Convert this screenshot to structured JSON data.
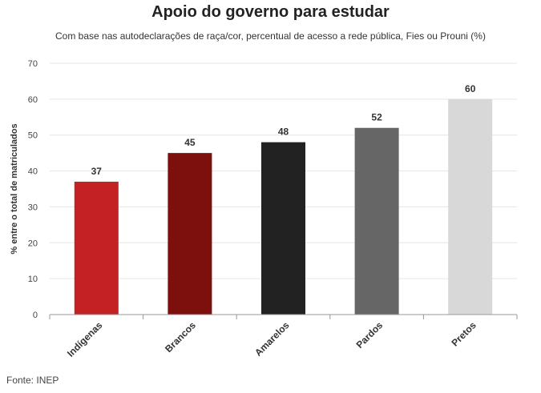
{
  "chart_data": {
    "type": "bar",
    "title": "Apoio do governo para estudar",
    "subtitle": "Com base nas autodeclarações de raça/cor, percentual de acesso a rede pública, Fies ou Prouni (%)",
    "ylabel": "% entre o total de matriculados",
    "xlabel": "",
    "categories": [
      "Indígenas",
      "Brancos",
      "Amarelos",
      "Pardos",
      "Pretos"
    ],
    "values": [
      37,
      45,
      48,
      52,
      60
    ],
    "colors": [
      "#c42124",
      "#7d0f0c",
      "#222222",
      "#666666",
      "#d8d8d8"
    ],
    "ylim": [
      0,
      70
    ],
    "yticks": [
      0,
      10,
      20,
      30,
      40,
      50,
      60,
      70
    ],
    "grid": true,
    "source": "Fonte: INEP"
  }
}
